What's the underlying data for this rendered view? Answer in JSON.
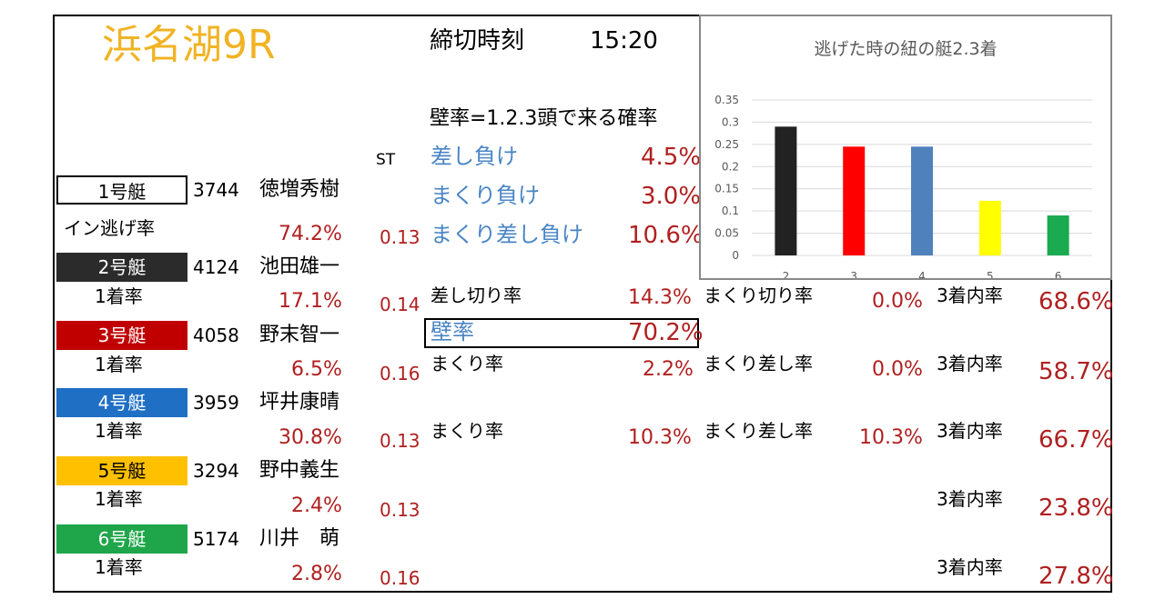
{
  "header": {
    "venue_race": "浜名湖9R",
    "deadline_label": "締切時刻",
    "deadline_time": "15:20"
  },
  "stats_heading": "壁率=1.2.3頭で来る確率",
  "st_label": "ST",
  "lose_stats": [
    {
      "label": "差し負け",
      "value": "4.5%"
    },
    {
      "label": "まくり負け",
      "value": "3.0%"
    },
    {
      "label": "まくり差し負け",
      "value": "10.6%"
    }
  ],
  "boats": [
    {
      "label": "1号艇",
      "reg": "3744",
      "name": "徳増秀樹",
      "rate_label": "イン逃げ率",
      "rate": "74.2%",
      "st": "0.13",
      "bg": "#ffffff",
      "fg": "#000000"
    },
    {
      "label": "2号艇",
      "reg": "4124",
      "name": "池田雄一",
      "rate_label": "1着率",
      "rate": "17.1%",
      "st": "0.14",
      "bg": "#2b2b2b",
      "fg": "#ffffff"
    },
    {
      "label": "3号艇",
      "reg": "4058",
      "name": "野末智一",
      "rate_label": "1着率",
      "rate": "6.5%",
      "st": "0.16",
      "bg": "#c00000",
      "fg": "#ffffff"
    },
    {
      "label": "4号艇",
      "reg": "3959",
      "name": "坪井康晴",
      "rate_label": "1着率",
      "rate": "30.8%",
      "st": "0.13",
      "bg": "#1f6fc5",
      "fg": "#ffffff"
    },
    {
      "label": "5号艇",
      "reg": "3294",
      "name": "野中義生",
      "rate_label": "1着率",
      "rate": "2.4%",
      "st": "0.13",
      "bg": "#ffc000",
      "fg": "#000000"
    },
    {
      "label": "6号艇",
      "reg": "5174",
      "name": "川井　萌",
      "rate_label": "1着率",
      "rate": "2.8%",
      "st": "0.16",
      "bg": "#1fa64a",
      "fg": "#ffffff"
    }
  ],
  "boat2_stats": {
    "sashi_kiri_label": "差し切り率",
    "sashi_kiri": "14.3%",
    "kabe_label": "壁率",
    "kabe": "70.2%",
    "makuri_kiri_label": "まくり切り率",
    "makuri_kiri": "0.0%",
    "top3_label": "3着内率",
    "top3": "68.6%"
  },
  "boat3_stats": {
    "makuri_label": "まくり率",
    "makuri": "2.2%",
    "makuri_sashi_label": "まくり差し率",
    "makuri_sashi": "0.0%",
    "top3_label": "3着内率",
    "top3": "58.7%"
  },
  "boat4_stats": {
    "makuri_label": "まくり率",
    "makuri": "10.3%",
    "makuri_sashi_label": "まくり差し率",
    "makuri_sashi": "10.3%",
    "top3_label": "3着内率",
    "top3": "66.7%"
  },
  "boat5_stats": {
    "top3_label": "3着内率",
    "top3": "23.8%"
  },
  "boat6_stats": {
    "top3_label": "3着内率",
    "top3": "27.8%"
  },
  "chart_data": {
    "type": "bar",
    "title": "逃げた時の紐の艇2.3着",
    "categories": [
      "2",
      "3",
      "4",
      "5",
      "6"
    ],
    "values": [
      0.29,
      0.245,
      0.245,
      0.123,
      0.09
    ],
    "colors": [
      "#222222",
      "#ff0000",
      "#4f81bd",
      "#ffff00",
      "#1aaa50"
    ],
    "ylim": [
      0,
      0.35
    ],
    "yticks": [
      0,
      0.05,
      0.1,
      0.15,
      0.2,
      0.25,
      0.3,
      0.35
    ],
    "ytick_labels": [
      "0",
      "0.05",
      "0.1",
      "0.15",
      "0.2",
      "0.25",
      "0.3",
      "0.35"
    ],
    "grid": true,
    "legend": "none"
  }
}
